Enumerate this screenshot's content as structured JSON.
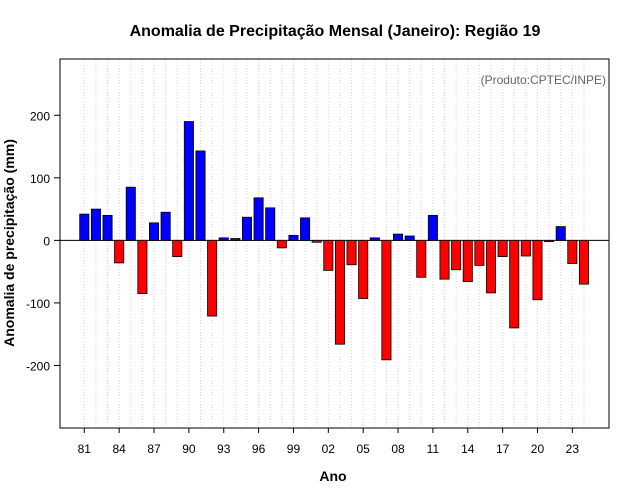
{
  "chart_data": {
    "type": "bar",
    "title": "Anomalia de Precipitação Mensal (Janeiro): Região 19",
    "xlabel": "Ano",
    "ylabel": "Anomalia de precipitação (mm)",
    "credit": "(Produto:CPTEC/INPE)",
    "ylim": [
      -300,
      290
    ],
    "yticks": [
      -200,
      -100,
      0,
      100,
      200
    ],
    "xtick_labels": [
      "81",
      "84",
      "87",
      "90",
      "93",
      "96",
      "99",
      "02",
      "05",
      "08",
      "11",
      "14",
      "17",
      "20",
      "23"
    ],
    "years": [
      1981,
      1982,
      1983,
      1984,
      1985,
      1986,
      1987,
      1988,
      1989,
      1990,
      1991,
      1992,
      1993,
      1994,
      1995,
      1996,
      1997,
      1998,
      1999,
      2000,
      2001,
      2002,
      2003,
      2004,
      2005,
      2006,
      2007,
      2008,
      2009,
      2010,
      2011,
      2012,
      2013,
      2014,
      2015,
      2016,
      2017,
      2018,
      2019,
      2020,
      2021,
      2022,
      2023,
      2024
    ],
    "values": [
      42,
      50,
      40,
      -36,
      85,
      -85,
      28,
      45,
      -26,
      190,
      143,
      -121,
      4,
      3,
      37,
      68,
      52,
      -12,
      8,
      36,
      -3,
      -48,
      -166,
      -39,
      -93,
      4,
      -191,
      10,
      7,
      -59,
      40,
      -62,
      -47,
      -66,
      -40,
      -84,
      -26,
      -140,
      -25,
      -95,
      -2,
      22,
      -37,
      -70
    ],
    "colors": {
      "positive": "#0000ff",
      "negative": "#ff0000"
    }
  }
}
